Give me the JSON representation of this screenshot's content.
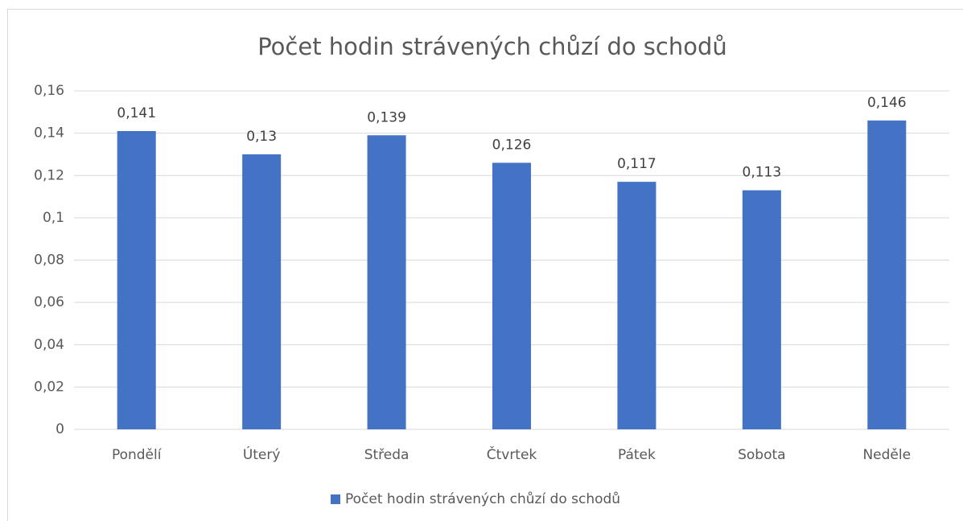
{
  "chart_data": {
    "type": "bar",
    "title": "Počet hodin strávených chůzí do schodů",
    "categories": [
      "Pondělí",
      "Úterý",
      "Středa",
      "Čtvrtek",
      "Pátek",
      "Sobota",
      "Neděle"
    ],
    "series": [
      {
        "name": "Počet hodin strávených chůzí do schodů",
        "color": "#4472c4",
        "values": [
          0.141,
          0.13,
          0.139,
          0.126,
          0.117,
          0.113,
          0.146
        ],
        "value_labels": [
          "0,141",
          "0,13",
          "0,139",
          "0,126",
          "0,117",
          "0,113",
          "0,146"
        ]
      }
    ],
    "ylim": [
      0,
      0.16
    ],
    "yticks": [
      0,
      {
        "value": 0.02,
        "label": "0,02"
      },
      {
        "value": 0.04,
        "label": "0,04"
      },
      {
        "value": 0.06,
        "label": "0,06"
      },
      {
        "value": 0.08,
        "label": "0,08"
      },
      {
        "value": 0.1,
        "label": "0,1"
      },
      {
        "value": 0.12,
        "label": "0,12"
      },
      {
        "value": 0.14,
        "label": "0,14"
      },
      {
        "value": 0.16,
        "label": "0,16"
      }
    ],
    "grid": true,
    "legend": "bottom"
  }
}
